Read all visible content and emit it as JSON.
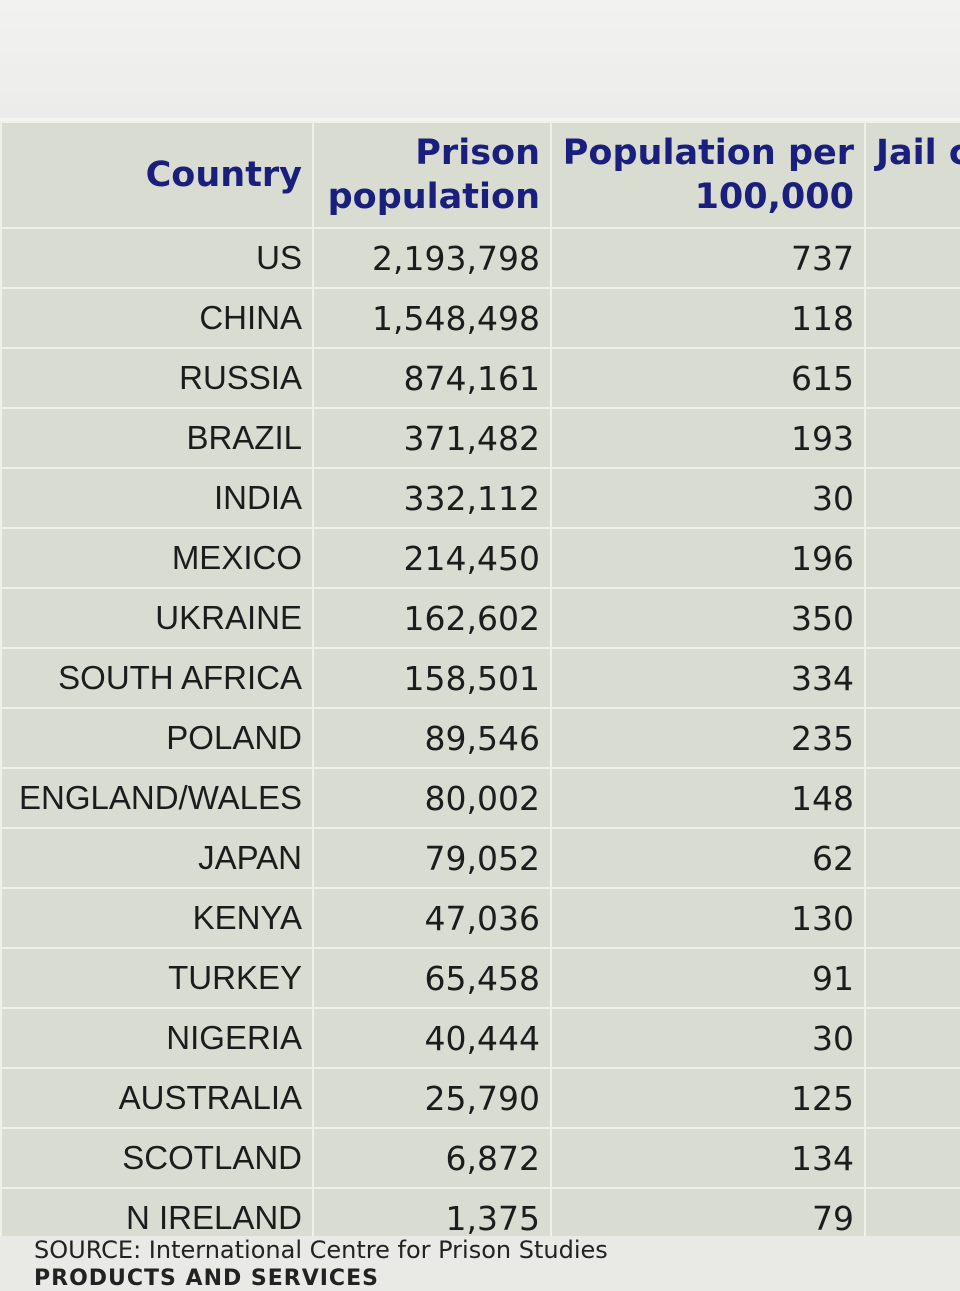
{
  "table": {
    "headers": {
      "country": "Country",
      "prison_line1": "Prison",
      "prison_line2": "population",
      "rate_line1": "Population per",
      "rate_line2": "100,000",
      "jail": "Jail c"
    },
    "rows": [
      {
        "country": "US",
        "prison_population": "2,193,798",
        "per_100000": "737"
      },
      {
        "country": "CHINA",
        "prison_population": "1,548,498",
        "per_100000": "118"
      },
      {
        "country": "RUSSIA",
        "prison_population": "874,161",
        "per_100000": "615"
      },
      {
        "country": "BRAZIL",
        "prison_population": "371,482",
        "per_100000": "193"
      },
      {
        "country": "INDIA",
        "prison_population": "332,112",
        "per_100000": "30"
      },
      {
        "country": "MEXICO",
        "prison_population": "214,450",
        "per_100000": "196"
      },
      {
        "country": "UKRAINE",
        "prison_population": "162,602",
        "per_100000": "350"
      },
      {
        "country": "SOUTH AFRICA",
        "prison_population": "158,501",
        "per_100000": "334"
      },
      {
        "country": "POLAND",
        "prison_population": "89,546",
        "per_100000": "235"
      },
      {
        "country": "ENGLAND/WALES",
        "prison_population": "80,002",
        "per_100000": "148"
      },
      {
        "country": "JAPAN",
        "prison_population": "79,052",
        "per_100000": "62"
      },
      {
        "country": "KENYA",
        "prison_population": "47,036",
        "per_100000": "130"
      },
      {
        "country": "TURKEY",
        "prison_population": "65,458",
        "per_100000": "91"
      },
      {
        "country": "NIGERIA",
        "prison_population": "40,444",
        "per_100000": "30"
      },
      {
        "country": "AUSTRALIA",
        "prison_population": "25,790",
        "per_100000": "125"
      },
      {
        "country": "SCOTLAND",
        "prison_population": "6,872",
        "per_100000": "134"
      },
      {
        "country": "N IRELAND",
        "prison_population": "1,375",
        "per_100000": "79"
      }
    ]
  },
  "source": "SOURCE: International Centre for Prison Studies",
  "partial_heading": "PRODUCTS AND SERVICES"
}
